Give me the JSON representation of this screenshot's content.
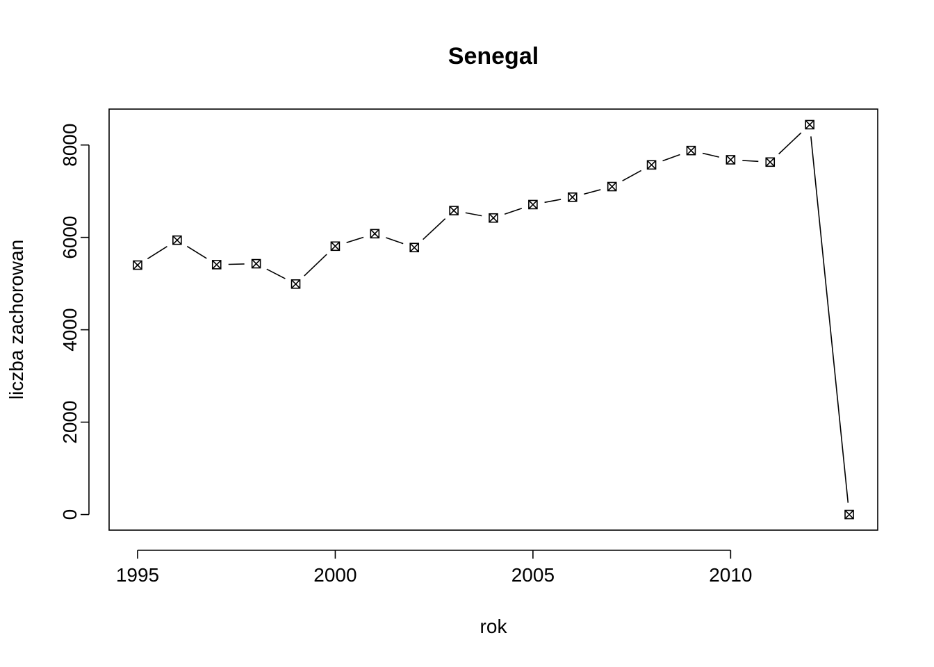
{
  "chart_data": {
    "type": "line",
    "title": "Senegal",
    "xlabel": "rok",
    "ylabel": "liczba zachorowan",
    "x": [
      1995,
      1996,
      1997,
      1998,
      1999,
      2000,
      2001,
      2002,
      2003,
      2004,
      2005,
      2006,
      2007,
      2008,
      2009,
      2010,
      2011,
      2012,
      2013
    ],
    "series": [
      {
        "values": [
          5400,
          5940,
          5410,
          5430,
          4990,
          5810,
          6080,
          5780,
          6580,
          6420,
          6710,
          6870,
          7100,
          7570,
          7880,
          7680,
          7630,
          8440,
          0
        ]
      }
    ],
    "xlim": [
      1994.28,
      2013.72
    ],
    "ylim": [
      -337.6,
      8777.6
    ],
    "x_ticks": [
      "1995",
      "2000",
      "2005",
      "2010"
    ],
    "y_ticks": [
      "0",
      "2000",
      "4000",
      "6000",
      "8000"
    ],
    "marker": "boxed-x",
    "grid": false,
    "legend": "none"
  }
}
